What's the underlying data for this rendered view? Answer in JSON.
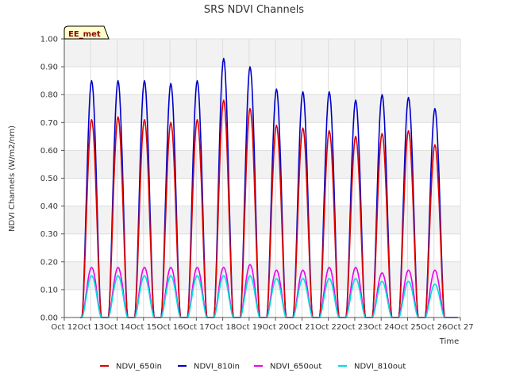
{
  "chart_data": {
    "type": "line",
    "title": "SRS NDVI Channels",
    "xlabel": "Time",
    "ylabel": "NDVI Channels (W/m2/nm)",
    "ylim": [
      0,
      1.0
    ],
    "xlim": [
      12,
      27
    ],
    "yticks": [
      "0.00",
      "0.10",
      "0.20",
      "0.30",
      "0.40",
      "0.50",
      "0.60",
      "0.70",
      "0.80",
      "0.90",
      "1.00"
    ],
    "xticks": [
      "Oct 12",
      "Oct 13",
      "Oct 14",
      "Oct 15",
      "Oct 16",
      "Oct 17",
      "Oct 18",
      "Oct 19",
      "Oct 20",
      "Oct 21",
      "Oct 22",
      "Oct 23",
      "Oct 24",
      "Oct 25",
      "Oct 26",
      "Oct 27"
    ],
    "grid": true,
    "legend_position": "bottom",
    "badge": "EE_met",
    "day_start": 12.33,
    "day_end": 12.73,
    "series": [
      {
        "name": "NDVI_650in",
        "color": "#dd0000",
        "peaks": [
          0.71,
          0.72,
          0.71,
          0.7,
          0.71,
          0.78,
          0.75,
          0.69,
          0.68,
          0.67,
          0.65,
          0.66,
          0.67,
          0.62
        ]
      },
      {
        "name": "NDVI_810in",
        "color": "#0000cc",
        "peaks": [
          0.85,
          0.85,
          0.85,
          0.84,
          0.85,
          0.93,
          0.9,
          0.82,
          0.81,
          0.81,
          0.78,
          0.8,
          0.79,
          0.75
        ]
      },
      {
        "name": "NDVI_650out",
        "color": "#ee00ee",
        "peaks": [
          0.18,
          0.18,
          0.18,
          0.18,
          0.18,
          0.18,
          0.19,
          0.17,
          0.17,
          0.18,
          0.18,
          0.16,
          0.17,
          0.17
        ]
      },
      {
        "name": "NDVI_810out",
        "color": "#00dddd",
        "peaks": [
          0.15,
          0.15,
          0.15,
          0.15,
          0.15,
          0.15,
          0.15,
          0.14,
          0.14,
          0.14,
          0.14,
          0.13,
          0.13,
          0.12
        ]
      }
    ]
  }
}
